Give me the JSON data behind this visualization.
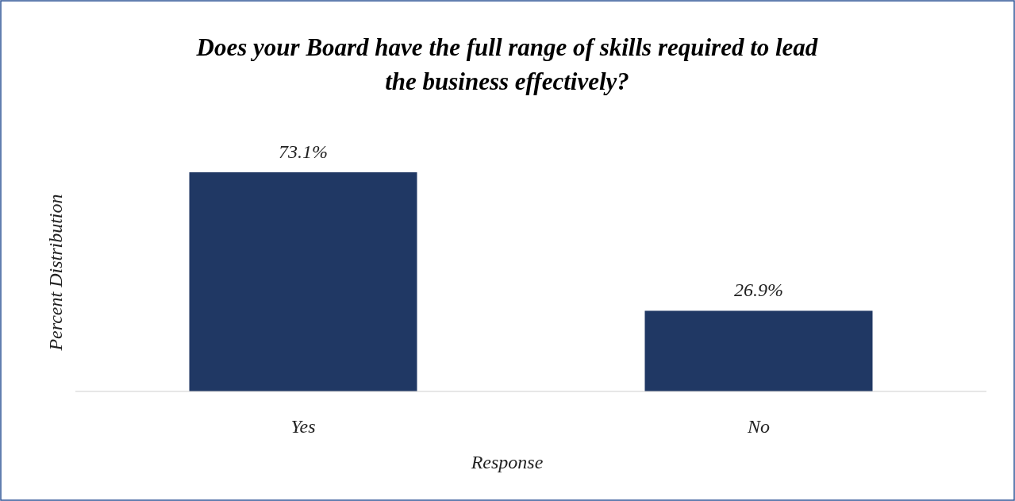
{
  "chart_data": {
    "type": "bar",
    "title": "Does your Board have the full range of skills required to lead the business effectively?",
    "xlabel": "Response",
    "ylabel": "Percent Distribution",
    "categories": [
      "Yes",
      "No"
    ],
    "values": [
      73.1,
      26.9
    ],
    "value_labels": [
      "73.1%",
      "26.9%"
    ],
    "color": "#203864"
  }
}
